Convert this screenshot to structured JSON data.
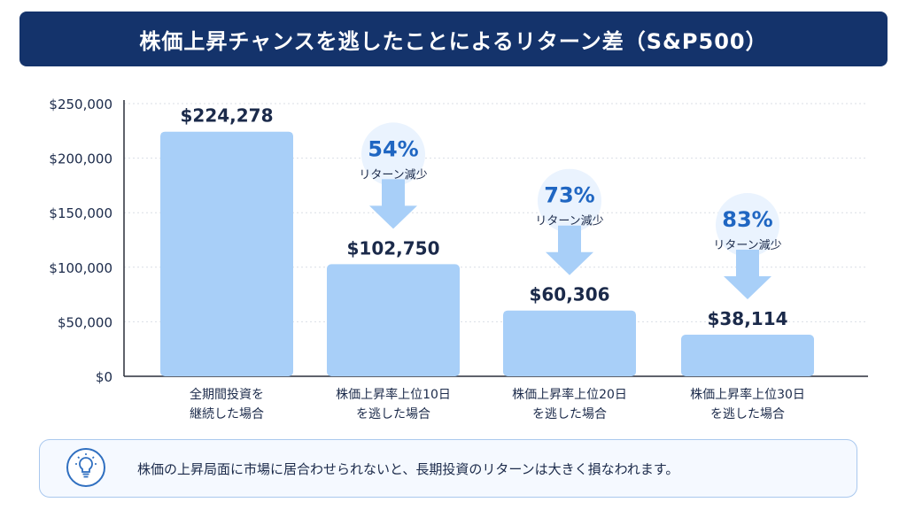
{
  "title": "株価上昇チャンスを逃したことによるリターン差（S&P500）",
  "chart_data": {
    "type": "bar",
    "categories": [
      [
        "全期間投資を",
        "継続した場合"
      ],
      [
        "株価上昇率上位10日",
        "を逃した場合"
      ],
      [
        "株価上昇率上位20日",
        "を逃した場合"
      ],
      [
        "株価上昇率上位30日",
        "を逃した場合"
      ]
    ],
    "values": [
      224278,
      102750,
      60306,
      38114
    ],
    "value_labels": [
      "$224,278",
      "$102,750",
      "$60,306",
      "$38,114"
    ],
    "yticks": [
      "$0",
      "$50,000",
      "$100,000",
      "$150,000",
      "$200,000",
      "$250,000"
    ],
    "ylim": [
      0,
      250000
    ],
    "grid": true,
    "reductions": [
      {
        "percent": "54%",
        "label": "リターン減少"
      },
      {
        "percent": "73%",
        "label": "リターン減少"
      },
      {
        "percent": "83%",
        "label": "リターン減少"
      }
    ],
    "colors": {
      "bar": "#a8cff8",
      "title_bg": "#14336b",
      "accent": "#1f66c2",
      "arrow": "#a8cff8",
      "badge": "#eaf3fe"
    }
  },
  "note": {
    "icon": "lightbulb-icon",
    "text": "株価の上昇局面に市場に居合わせられないと、長期投資のリターンは大きく損なわれます。"
  }
}
